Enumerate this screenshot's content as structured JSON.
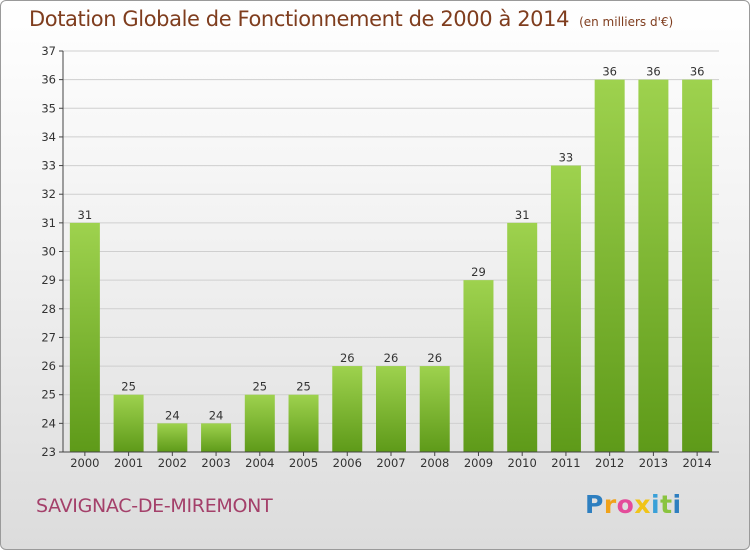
{
  "title": "Dotation Globale de Fonctionnement de 2000 à 2014",
  "unit_label": "(en milliers d'€)",
  "commune": "SAVIGNAC-DE-MIREMONT",
  "logo": {
    "letters": [
      "P",
      "r",
      "o",
      "x",
      "i",
      "t",
      "i"
    ],
    "colors": [
      "#2e7fc0",
      "#f0a21a",
      "#e44c9a",
      "#f0c419",
      "#3aa0d8",
      "#8ac43f",
      "#2e7fc0"
    ]
  },
  "colors": {
    "bar_light": "#9ed24e",
    "bar_dark": "#5e9a19",
    "title": "#7f3d1e",
    "commune": "#a4406a",
    "grid": "#cfcfcf",
    "axis": "#444444"
  },
  "chart_data": {
    "type": "bar",
    "categories": [
      "2000",
      "2001",
      "2002",
      "2003",
      "2004",
      "2005",
      "2006",
      "2007",
      "2008",
      "2009",
      "2010",
      "2011",
      "2012",
      "2013",
      "2014"
    ],
    "values": [
      31,
      25,
      24,
      24,
      25,
      25,
      26,
      26,
      26,
      29,
      31,
      33,
      36,
      36,
      36
    ],
    "ylim": [
      23,
      37
    ],
    "yticks": [
      23,
      24,
      25,
      26,
      27,
      28,
      29,
      30,
      31,
      32,
      33,
      34,
      35,
      36,
      37
    ],
    "title": "Dotation Globale de Fonctionnement de 2000 à 2014",
    "xlabel": "",
    "ylabel": "",
    "grid": true,
    "data_labels": true
  }
}
